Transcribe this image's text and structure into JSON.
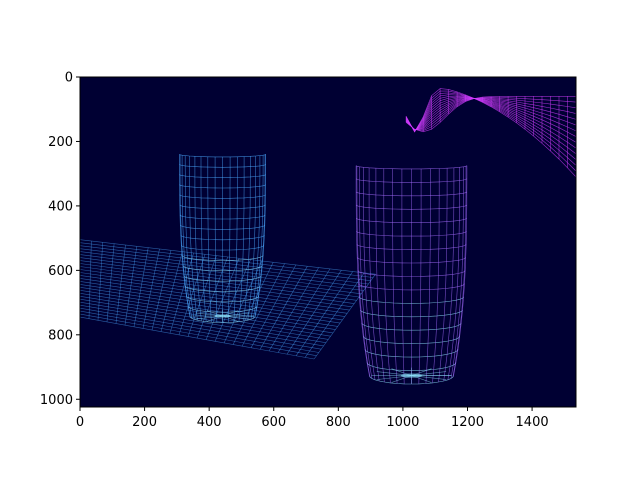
{
  "chart_data": {
    "type": "image",
    "title": "",
    "xlabel": "",
    "ylabel": "",
    "xlim": [
      0,
      1536
    ],
    "ylim": [
      1024,
      0
    ],
    "x_ticks": [
      0,
      200,
      400,
      600,
      800,
      1000,
      1200,
      1400
    ],
    "y_ticks": [
      0,
      200,
      400,
      600,
      800,
      1000
    ],
    "colors": {
      "background": "#000033",
      "wire_blue": "#4aa8ff",
      "wire_cyan": "#8fe6ff",
      "wire_purple": "#a46bff",
      "wire_magenta": "#d13cff"
    },
    "objects": [
      {
        "name": "glass-left",
        "kind": "wireframe-cylinder",
        "top_y": 240,
        "bottom_y": 760,
        "x_left": 308,
        "x_right": 575
      },
      {
        "name": "glass-right",
        "kind": "wireframe-cylinder",
        "top_y": 275,
        "bottom_y": 950,
        "x_left": 855,
        "x_right": 1198
      },
      {
        "name": "ground-plane",
        "kind": "wireframe-plane",
        "x_range": [
          0,
          920
        ],
        "y_range": [
          500,
          875
        ]
      },
      {
        "name": "curved-surface",
        "kind": "wireframe-surface",
        "x_range": [
          1010,
          1536
        ],
        "y_range": [
          0,
          310
        ]
      }
    ]
  }
}
